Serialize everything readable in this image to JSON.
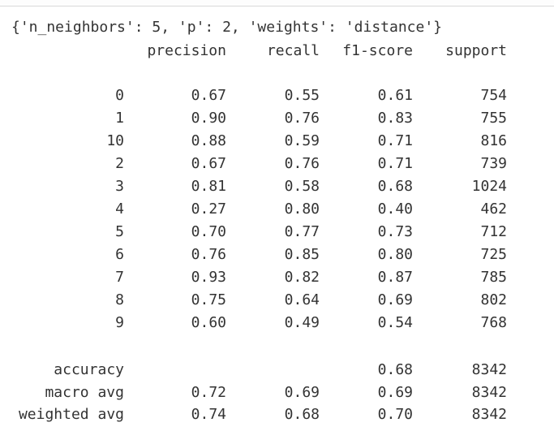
{
  "params_line": "{'n_neighbors': 5, 'p': 2, 'weights': 'distance'}",
  "headers": [
    "precision",
    "recall",
    "f1-score",
    "support"
  ],
  "rows": [
    {
      "label": "0",
      "precision": "0.67",
      "recall": "0.55",
      "f1": "0.61",
      "support": "754"
    },
    {
      "label": "1",
      "precision": "0.90",
      "recall": "0.76",
      "f1": "0.83",
      "support": "755"
    },
    {
      "label": "10",
      "precision": "0.88",
      "recall": "0.59",
      "f1": "0.71",
      "support": "816"
    },
    {
      "label": "2",
      "precision": "0.67",
      "recall": "0.76",
      "f1": "0.71",
      "support": "739"
    },
    {
      "label": "3",
      "precision": "0.81",
      "recall": "0.58",
      "f1": "0.68",
      "support": "1024"
    },
    {
      "label": "4",
      "precision": "0.27",
      "recall": "0.80",
      "f1": "0.40",
      "support": "462"
    },
    {
      "label": "5",
      "precision": "0.70",
      "recall": "0.77",
      "f1": "0.73",
      "support": "712"
    },
    {
      "label": "6",
      "precision": "0.76",
      "recall": "0.85",
      "f1": "0.80",
      "support": "725"
    },
    {
      "label": "7",
      "precision": "0.93",
      "recall": "0.82",
      "f1": "0.87",
      "support": "785"
    },
    {
      "label": "8",
      "precision": "0.75",
      "recall": "0.64",
      "f1": "0.69",
      "support": "802"
    },
    {
      "label": "9",
      "precision": "0.60",
      "recall": "0.49",
      "f1": "0.54",
      "support": "768"
    }
  ],
  "summary": [
    {
      "label": "accuracy",
      "precision": "",
      "recall": "",
      "f1": "0.68",
      "support": "8342"
    },
    {
      "label": "macro avg",
      "precision": "0.72",
      "recall": "0.69",
      "f1": "0.69",
      "support": "8342"
    },
    {
      "label": "weighted avg",
      "precision": "0.74",
      "recall": "0.68",
      "f1": "0.70",
      "support": "8342"
    }
  ]
}
